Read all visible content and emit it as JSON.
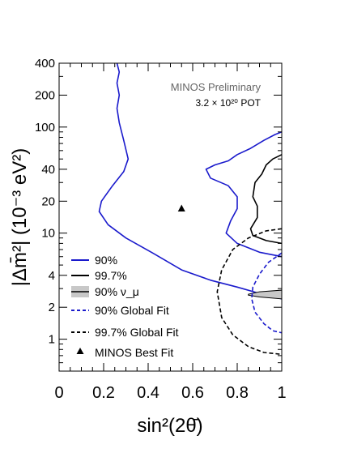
{
  "chart_data": {
    "type": "line",
    "xlabel": "sin²(2θ̄)",
    "ylabel": "|Δm̄²| (10⁻³ eV²)",
    "xlim": [
      0,
      1
    ],
    "ylim": [
      0.5,
      400
    ],
    "y_scale": "log",
    "x_ticks": [
      "0",
      "0.2",
      "0.4",
      "0.6",
      "0.8",
      "1"
    ],
    "y_ticks": [
      "1",
      "2",
      "4",
      "10",
      "20",
      "40",
      "100",
      "200",
      "400"
    ],
    "annotation_line1": "MINOS Preliminary",
    "annotation_line2": "3.2 × 10²⁰ POT",
    "legend_position": "bottom-left",
    "colors": {
      "blue": "#1a1acc",
      "black": "#000000",
      "band": "#c8c8c8"
    },
    "series": [
      {
        "name": "90%",
        "style": "solid-blue",
        "points": [
          [
            0.26,
            400
          ],
          [
            0.27,
            330
          ],
          [
            0.26,
            260
          ],
          [
            0.27,
            200
          ],
          [
            0.26,
            150
          ],
          [
            0.27,
            110
          ],
          [
            0.29,
            75
          ],
          [
            0.31,
            50
          ],
          [
            0.29,
            38
          ],
          [
            0.24,
            28
          ],
          [
            0.19,
            20
          ],
          [
            0.18,
            16
          ],
          [
            0.22,
            12
          ],
          [
            0.3,
            9
          ],
          [
            0.42,
            6.5
          ],
          [
            0.55,
            4.5
          ],
          [
            0.68,
            3.6
          ],
          [
            0.8,
            3.1
          ],
          [
            0.9,
            2.7
          ],
          [
            1.0,
            2.4
          ]
        ]
      },
      {
        "name": "90%",
        "style": "solid-blue-right",
        "points": [
          [
            1.0,
            90
          ],
          [
            0.97,
            85
          ],
          [
            0.92,
            75
          ],
          [
            0.86,
            63
          ],
          [
            0.8,
            55
          ],
          [
            0.76,
            48
          ],
          [
            0.7,
            44
          ],
          [
            0.66,
            40
          ],
          [
            0.68,
            33
          ],
          [
            0.76,
            28
          ],
          [
            0.8,
            22
          ],
          [
            0.8,
            17
          ],
          [
            0.77,
            13
          ],
          [
            0.75,
            10
          ],
          [
            0.8,
            8
          ],
          [
            0.9,
            6.6
          ],
          [
            1.0,
            6
          ]
        ]
      },
      {
        "name": "99.7%",
        "style": "solid-black",
        "points": [
          [
            1.0,
            55
          ],
          [
            0.96,
            50
          ],
          [
            0.93,
            44
          ],
          [
            0.91,
            36
          ],
          [
            0.88,
            30
          ],
          [
            0.87,
            22
          ],
          [
            0.89,
            18
          ],
          [
            0.89,
            14
          ],
          [
            0.86,
            11
          ],
          [
            0.87,
            9.5
          ],
          [
            0.93,
            8.5
          ],
          [
            1.0,
            8
          ]
        ]
      },
      {
        "name": "90% ν_μ",
        "style": "gray-band",
        "points": [
          [
            0.85,
            2.6
          ],
          [
            0.9,
            2.5
          ],
          [
            1.0,
            2.4
          ],
          [
            1.0,
            2.9
          ],
          [
            0.9,
            2.8
          ],
          [
            0.85,
            2.65
          ]
        ]
      },
      {
        "name": "90% Global Fit",
        "style": "dashed-blue",
        "points": [
          [
            1.0,
            6.5
          ],
          [
            0.94,
            5.3
          ],
          [
            0.9,
            4.1
          ],
          [
            0.87,
            3.1
          ],
          [
            0.865,
            2.4
          ],
          [
            0.88,
            1.8
          ],
          [
            0.92,
            1.4
          ],
          [
            0.96,
            1.2
          ],
          [
            1.0,
            1.15
          ]
        ]
      },
      {
        "name": "99.7% Global Fit",
        "style": "dashed-black",
        "points": [
          [
            1.0,
            11
          ],
          [
            0.93,
            10.5
          ],
          [
            0.85,
            9
          ],
          [
            0.78,
            7
          ],
          [
            0.73,
            4.5
          ],
          [
            0.71,
            2.8
          ],
          [
            0.73,
            1.6
          ],
          [
            0.78,
            1.1
          ],
          [
            0.85,
            0.85
          ],
          [
            0.92,
            0.75
          ],
          [
            1.0,
            0.72
          ]
        ]
      },
      {
        "name": "MINOS Best Fit",
        "style": "marker-triangle",
        "points": [
          [
            0.55,
            17
          ]
        ]
      }
    ]
  }
}
